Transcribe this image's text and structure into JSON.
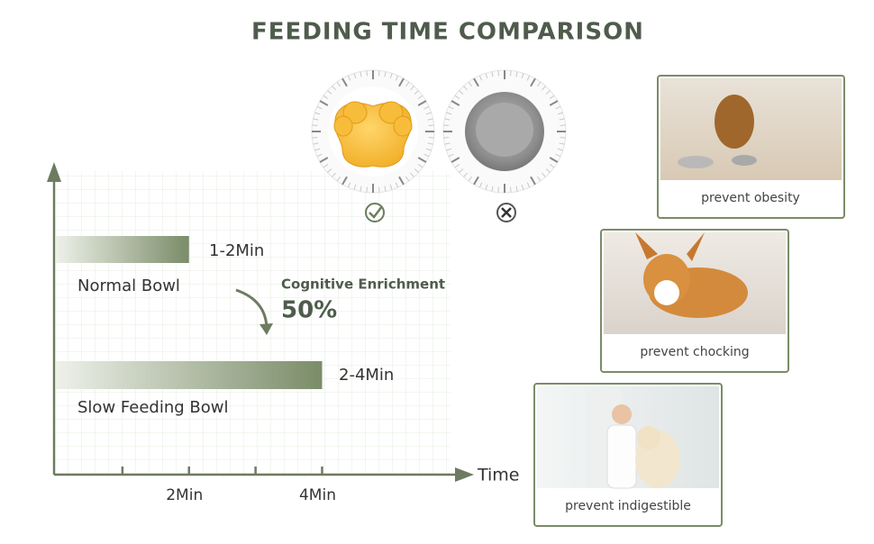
{
  "chart_data": {
    "type": "bar",
    "title": "FEEDING TIME COMPARISON",
    "categories": [
      "Normal Bowl",
      "Slow Feeding Bowl"
    ],
    "values": [
      2,
      4
    ],
    "value_labels": [
      "1-2Min",
      "2-4Min"
    ],
    "color": "#7a8c68",
    "xlim": [
      0,
      6.2
    ],
    "xticks": [
      {
        "value": 2,
        "label": "2Min"
      },
      {
        "value": 4,
        "label": "4Min"
      }
    ],
    "xminor_ticks": [
      1,
      3
    ],
    "x_label": "Time",
    "grid": true,
    "annotations": [
      "Cognitive Enrichment",
      "50%"
    ]
  },
  "panels": [
    "prevent obesity",
    "prevent chocking",
    "prevent indigestible"
  ]
}
